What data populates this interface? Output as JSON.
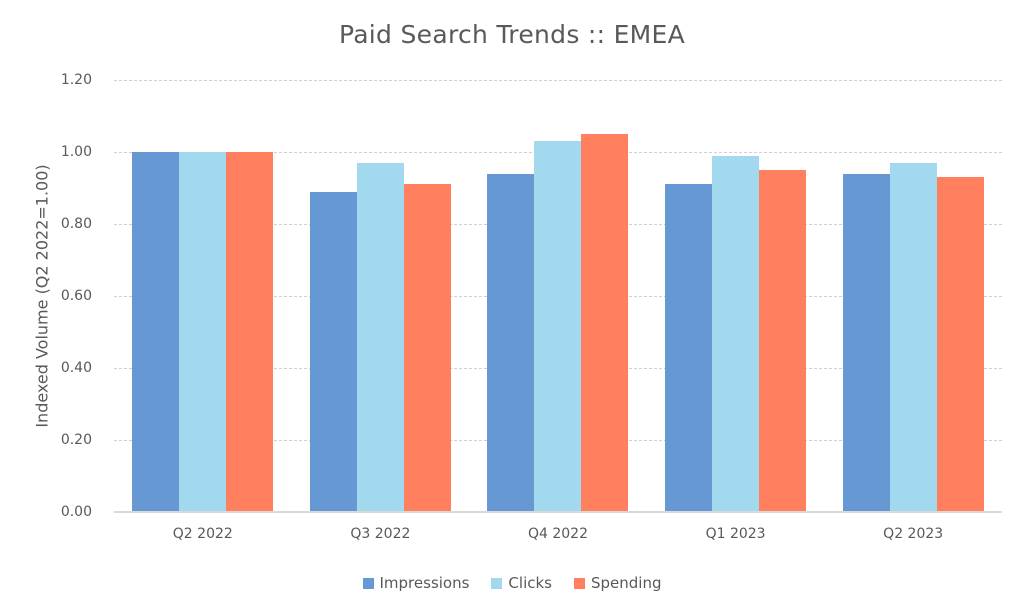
{
  "chart_data": {
    "type": "bar",
    "title": "Paid Search Trends :: EMEA",
    "xlabel": "",
    "ylabel": "Indexed Volume (Q2 2022=1.00)",
    "ylim": [
      0,
      1.2
    ],
    "yticks": [
      "0.00",
      "0.20",
      "0.40",
      "0.60",
      "0.80",
      "1.00",
      "1.20"
    ],
    "grid": true,
    "legend_position": "bottom",
    "categories": [
      "Q2 2022",
      "Q3 2022",
      "Q4 2022",
      "Q1 2023",
      "Q2 2023"
    ],
    "series": [
      {
        "name": "Impressions",
        "color": "#6699D3",
        "values": [
          1.0,
          0.89,
          0.94,
          0.91,
          0.94
        ]
      },
      {
        "name": "Clicks",
        "color": "#A2D9EE",
        "values": [
          1.0,
          0.97,
          1.03,
          0.99,
          0.97
        ]
      },
      {
        "name": "Spending",
        "color": "#FF7F5E",
        "values": [
          1.0,
          0.91,
          1.05,
          0.95,
          0.93
        ]
      }
    ]
  }
}
